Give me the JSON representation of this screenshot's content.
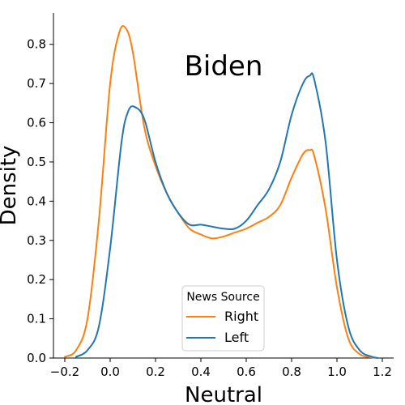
{
  "chart_data": {
    "type": "line",
    "title": "Biden",
    "xlabel": "Neutral",
    "ylabel": "Density",
    "xlim": [
      -0.25,
      1.25
    ],
    "ylim": [
      0,
      0.88
    ],
    "xticks": [
      "−0.2",
      "0.0",
      "0.2",
      "0.4",
      "0.6",
      "0.8",
      "1.0",
      "1.2"
    ],
    "xtick_values": [
      -0.2,
      0.0,
      0.2,
      0.4,
      0.6,
      0.8,
      1.0,
      1.2
    ],
    "yticks": [
      "0.0",
      "0.1",
      "0.2",
      "0.3",
      "0.4",
      "0.5",
      "0.6",
      "0.7",
      "0.8"
    ],
    "ytick_values": [
      0.0,
      0.1,
      0.2,
      0.3,
      0.4,
      0.5,
      0.6,
      0.7,
      0.8
    ],
    "grid": false,
    "legend": {
      "title": "News Source",
      "placement": "lower-center"
    },
    "series": [
      {
        "name": "Right",
        "color": "#ff7f0e",
        "x": [
          -0.2,
          -0.15,
          -0.1,
          -0.05,
          0.0,
          0.04,
          0.07,
          0.1,
          0.15,
          0.2,
          0.25,
          0.3,
          0.35,
          0.4,
          0.45,
          0.5,
          0.55,
          0.6,
          0.65,
          0.7,
          0.75,
          0.8,
          0.85,
          0.88,
          0.9,
          0.95,
          1.0,
          1.05,
          1.1,
          1.15,
          1.18
        ],
        "y": [
          0.003,
          0.02,
          0.1,
          0.35,
          0.7,
          0.83,
          0.84,
          0.78,
          0.59,
          0.49,
          0.42,
          0.37,
          0.33,
          0.315,
          0.305,
          0.31,
          0.32,
          0.33,
          0.345,
          0.36,
          0.39,
          0.46,
          0.52,
          0.53,
          0.515,
          0.38,
          0.18,
          0.05,
          0.01,
          0.002,
          0.0
        ]
      },
      {
        "name": "Left",
        "color": "#1f77b4",
        "x": [
          -0.15,
          -0.1,
          -0.05,
          0.0,
          0.05,
          0.08,
          0.11,
          0.15,
          0.2,
          0.25,
          0.3,
          0.35,
          0.4,
          0.45,
          0.5,
          0.55,
          0.6,
          0.65,
          0.7,
          0.75,
          0.8,
          0.85,
          0.88,
          0.9,
          0.95,
          1.0,
          1.05,
          1.1,
          1.15,
          1.18
        ],
        "y": [
          0.003,
          0.02,
          0.08,
          0.28,
          0.55,
          0.63,
          0.64,
          0.61,
          0.5,
          0.42,
          0.37,
          0.34,
          0.34,
          0.335,
          0.33,
          0.33,
          0.35,
          0.39,
          0.43,
          0.5,
          0.62,
          0.7,
          0.72,
          0.71,
          0.55,
          0.25,
          0.08,
          0.02,
          0.004,
          0.0
        ]
      }
    ]
  }
}
